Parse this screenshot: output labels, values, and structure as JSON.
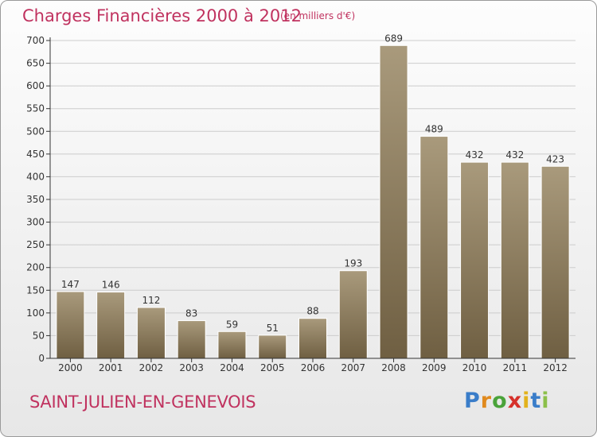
{
  "title": "Charges Financières 2000 à 2012",
  "subtitle": "(en milliers d'€)",
  "commune": "SAINT-JULIEN-EN-GENEVOIS",
  "logo": {
    "letters": [
      "P",
      "r",
      "o",
      "x",
      "i",
      "t",
      "i"
    ],
    "colors": [
      "#3a7dc9",
      "#e08a1e",
      "#4aa33a",
      "#d6312b",
      "#e2b21c",
      "#3a7dc9",
      "#8cc04a"
    ]
  },
  "colors": {
    "bar_top": "#a99a7c",
    "bar_bottom": "#6f5f42",
    "axis": "#333333",
    "grid": "#cccccc",
    "title": "#c0325f"
  },
  "chart_data": {
    "type": "bar",
    "title": "Charges Financières 2000 à 2012",
    "subtitle": "(en milliers d'€)",
    "categories": [
      "2000",
      "2001",
      "2002",
      "2003",
      "2004",
      "2005",
      "2006",
      "2007",
      "2008",
      "2009",
      "2010",
      "2011",
      "2012"
    ],
    "values": [
      147,
      146,
      112,
      83,
      59,
      51,
      88,
      193,
      689,
      489,
      432,
      432,
      423
    ],
    "ylim": [
      0,
      700
    ],
    "yticks": [
      0,
      50,
      100,
      150,
      200,
      250,
      300,
      350,
      400,
      450,
      500,
      550,
      600,
      650,
      700
    ],
    "grid": true,
    "data_labels": true
  }
}
